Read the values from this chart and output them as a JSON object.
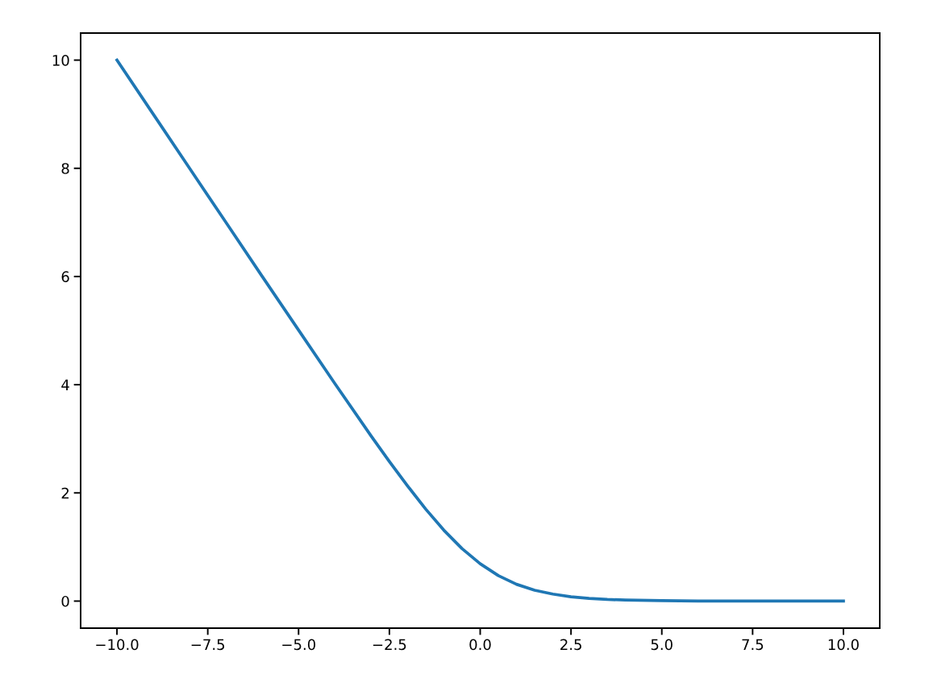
{
  "chart_data": {
    "type": "line",
    "x": [
      -10,
      -9,
      -8,
      -7,
      -6,
      -5,
      -4,
      -3,
      -2.5,
      -2,
      -1.5,
      -1,
      -0.5,
      0,
      0.5,
      1,
      1.5,
      2,
      2.5,
      3,
      3.5,
      4,
      5,
      6,
      8,
      10
    ],
    "series": [
      {
        "color": "#1f77b4",
        "values": [
          10.0,
          9.0,
          8.0,
          7.0,
          6.0,
          5.01,
          4.02,
          3.05,
          2.58,
          2.13,
          1.7,
          1.31,
          0.97,
          0.69,
          0.47,
          0.31,
          0.2,
          0.13,
          0.08,
          0.05,
          0.03,
          0.02,
          0.01,
          0.0,
          0.0,
          0.0
        ]
      }
    ],
    "xlim": [
      -11,
      11
    ],
    "ylim": [
      -0.5,
      10.5
    ],
    "xticks": [
      {
        "value": -10,
        "label": "−10.0"
      },
      {
        "value": -7.5,
        "label": "−7.5"
      },
      {
        "value": -5,
        "label": "−5.0"
      },
      {
        "value": -2.5,
        "label": "−2.5"
      },
      {
        "value": 0,
        "label": "0.0"
      },
      {
        "value": 2.5,
        "label": "2.5"
      },
      {
        "value": 5,
        "label": "5.0"
      },
      {
        "value": 7.5,
        "label": "7.5"
      },
      {
        "value": 10,
        "label": "10.0"
      }
    ],
    "yticks": [
      0,
      2,
      4,
      6,
      8,
      10
    ],
    "grid": false,
    "legend": false,
    "marker": "none",
    "line_style": "solid"
  }
}
